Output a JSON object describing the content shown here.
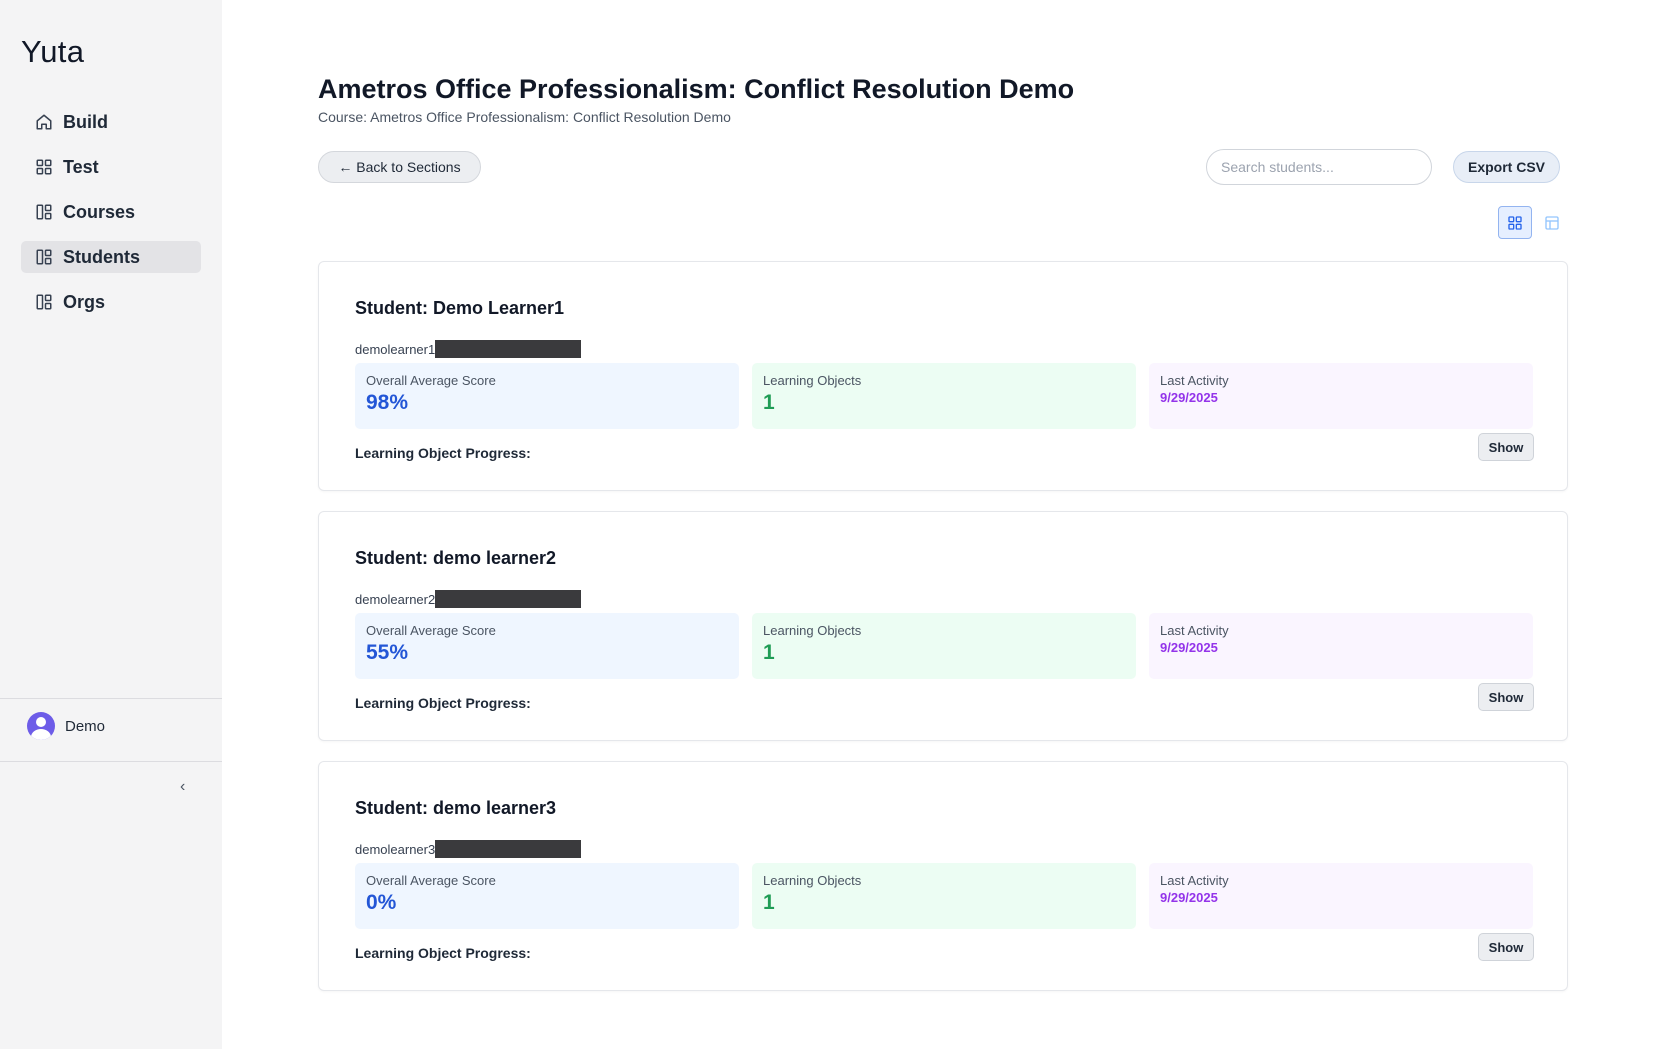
{
  "sidebar": {
    "brand": "Yuta",
    "items": [
      {
        "label": "Build",
        "icon": "home-icon",
        "active": false
      },
      {
        "label": "Test",
        "icon": "grid-icon",
        "active": false
      },
      {
        "label": "Courses",
        "icon": "layout-icon",
        "active": false
      },
      {
        "label": "Students",
        "icon": "layout-icon",
        "active": true
      },
      {
        "label": "Orgs",
        "icon": "layout-icon",
        "active": false
      }
    ],
    "user": {
      "name": "Demo"
    },
    "collapse_glyph": "‹"
  },
  "header": {
    "title": "Ametros Office Professionalism: Conflict Resolution Demo",
    "subtitle": "Course: Ametros Office Professionalism: Conflict Resolution Demo"
  },
  "toolbar": {
    "back_label": "← Back to Sections",
    "search_placeholder": "Search students...",
    "export_label": "Export CSV"
  },
  "colors": {
    "accent_blue": "#2356d6",
    "accent_green": "#1f9d55",
    "accent_purple": "#9333ea",
    "active_nav": "#e3e3e6"
  },
  "students": [
    {
      "title": "Student: Demo Learner1",
      "username": "demolearner1",
      "score_label": "Overall Average Score",
      "score": "98%",
      "lo_label": "Learning Objects",
      "lo_count": "1",
      "activity_label": "Last Activity",
      "activity_date": "9/29/2025",
      "progress_label": "Learning Object Progress:",
      "show_label": "Show"
    },
    {
      "title": "Student: demo learner2",
      "username": "demolearner2",
      "score_label": "Overall Average Score",
      "score": "55%",
      "lo_label": "Learning Objects",
      "lo_count": "1",
      "activity_label": "Last Activity",
      "activity_date": "9/29/2025",
      "progress_label": "Learning Object Progress:",
      "show_label": "Show"
    },
    {
      "title": "Student: demo learner3",
      "username": "demolearner3",
      "score_label": "Overall Average Score",
      "score": "0%",
      "lo_label": "Learning Objects",
      "lo_count": "1",
      "activity_label": "Last Activity",
      "activity_date": "9/29/2025",
      "progress_label": "Learning Object Progress:",
      "show_label": "Show"
    }
  ]
}
